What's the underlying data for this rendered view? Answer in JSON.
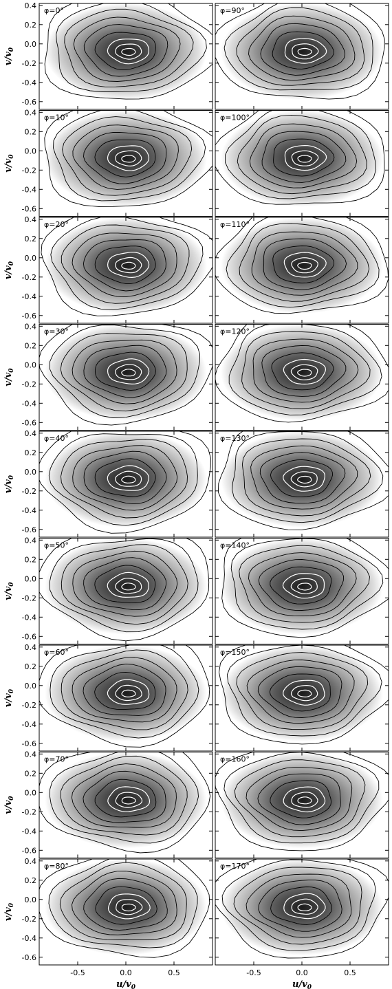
{
  "chart_data": {
    "type": "contour",
    "layout": "grid of 18 panels, 9 rows x 2 columns",
    "colormap": "grayscale (white = low density, dark = high density)",
    "contour_lines": "black outer contours, white inner contours",
    "xlabel": "u/v",
    "xlabel_sub": "0",
    "ylabel": "v/v",
    "ylabel_sub": "0",
    "xlim": [
      -0.9,
      0.9
    ],
    "ylim": [
      -0.68,
      0.42
    ],
    "xticks": [
      "-0.5",
      "0.0",
      "0.5"
    ],
    "yticks": [
      "0.4",
      "0.2",
      "0.0",
      "-0.2",
      "-0.4",
      "-0.6"
    ],
    "panel_parameter": "φ",
    "panels": [
      {
        "label": "φ=0°",
        "phi": 0
      },
      {
        "label": "φ=90°",
        "phi": 90
      },
      {
        "label": "φ=10°",
        "phi": 10
      },
      {
        "label": "φ=100°",
        "phi": 100
      },
      {
        "label": "φ=20°",
        "phi": 20
      },
      {
        "label": "φ=110°",
        "phi": 110
      },
      {
        "label": "φ=30°",
        "phi": 30
      },
      {
        "label": "φ=120°",
        "phi": 120
      },
      {
        "label": "φ=40°",
        "phi": 40
      },
      {
        "label": "φ=130°",
        "phi": 130
      },
      {
        "label": "φ=50°",
        "phi": 50
      },
      {
        "label": "φ=140°",
        "phi": 140
      },
      {
        "label": "φ=60°",
        "phi": 60
      },
      {
        "label": "φ=150°",
        "phi": 150
      },
      {
        "label": "φ=70°",
        "phi": 70
      },
      {
        "label": "φ=160°",
        "phi": 160
      },
      {
        "label": "φ=80°",
        "phi": 80
      },
      {
        "label": "φ=170°",
        "phi": 170
      }
    ]
  }
}
